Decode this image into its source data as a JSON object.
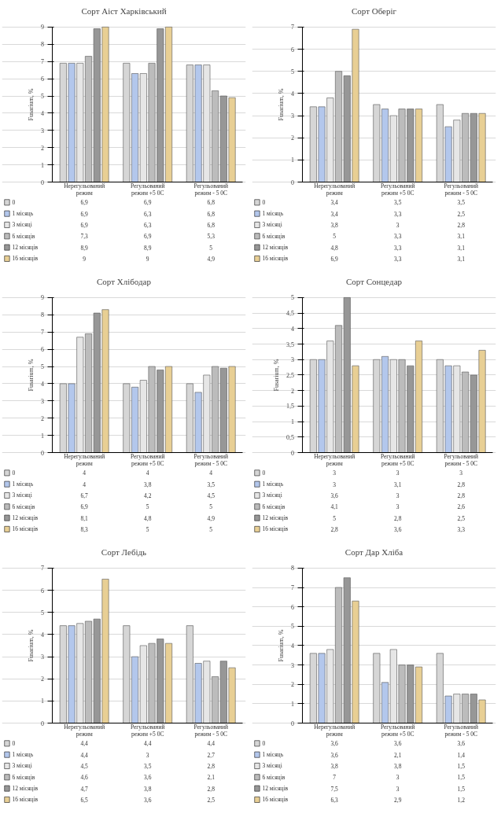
{
  "chart_data": [
    {
      "type": "bar",
      "title": "Сорт Аіст Харківський",
      "ylabel": "Fusarium, %",
      "categories": [
        "Нерегульований режим",
        "Регульований режим +5 0С",
        "Регульований режим - 5 0С"
      ],
      "ylim": [
        0,
        9
      ],
      "yticks": [
        0,
        1,
        2,
        3,
        4,
        5,
        6,
        7,
        8,
        9
      ],
      "grid": "y",
      "legend": "bottom",
      "tick_labels": "y",
      "series": [
        {
          "name": "0",
          "color": "#d6d6d6",
          "values": [
            6.9,
            6.9,
            6.8
          ],
          "value_labels": [
            "6,9",
            "6,9",
            "6,8"
          ]
        },
        {
          "name": "1 місяць",
          "color": "#b3c7ec",
          "values": [
            6.9,
            6.3,
            6.8
          ],
          "value_labels": [
            "6,9",
            "6,3",
            "6,8"
          ]
        },
        {
          "name": "3 місяці",
          "color": "#e6e6e6",
          "values": [
            6.9,
            6.3,
            6.8
          ],
          "value_labels": [
            "6,9",
            "6,3",
            "6,8"
          ]
        },
        {
          "name": "6 місяців",
          "color": "#bcbcbc",
          "values": [
            7.3,
            6.9,
            5.3
          ],
          "value_labels": [
            "7,3",
            "6,9",
            "5,3"
          ]
        },
        {
          "name": "12 місяців",
          "color": "#979797",
          "values": [
            8.9,
            8.9,
            5
          ],
          "value_labels": [
            "8,9",
            "8,9",
            "5"
          ]
        },
        {
          "name": "16 місяців",
          "color": "#e8cf94",
          "values": [
            9,
            9,
            4.9
          ],
          "value_labels": [
            "9",
            "9",
            "4,9"
          ]
        }
      ]
    },
    {
      "type": "bar",
      "title": "Сорт Оберіг",
      "ylabel": "Fusarium, %",
      "categories": [
        "Нерегульований режим",
        "Регульований режим +5 0С",
        "Регульований режим - 5 0С"
      ],
      "ylim": [
        0,
        7
      ],
      "yticks": [
        0,
        1,
        2,
        3,
        4,
        5,
        6,
        7
      ],
      "grid": "y",
      "legend": "bottom",
      "tick_labels": "y",
      "series": [
        {
          "name": "0",
          "color": "#d6d6d6",
          "values": [
            3.4,
            3.5,
            3.5
          ],
          "value_labels": [
            "3,4",
            "3,5",
            "3,5"
          ]
        },
        {
          "name": "1 місяць",
          "color": "#b3c7ec",
          "values": [
            3.4,
            3.3,
            2.5
          ],
          "value_labels": [
            "3,4",
            "3,3",
            "2,5"
          ]
        },
        {
          "name": "3 місяці",
          "color": "#e6e6e6",
          "values": [
            3.8,
            3,
            2.8
          ],
          "value_labels": [
            "3,8",
            "3",
            "2,8"
          ]
        },
        {
          "name": "6 місяців",
          "color": "#bcbcbc",
          "values": [
            5,
            3.3,
            3.1
          ],
          "value_labels": [
            "5",
            "3,3",
            "3,1"
          ]
        },
        {
          "name": "12 місяців",
          "color": "#979797",
          "values": [
            4.8,
            3.3,
            3.1
          ],
          "value_labels": [
            "4,8",
            "3,3",
            "3,1"
          ]
        },
        {
          "name": "16 місяців",
          "color": "#e8cf94",
          "values": [
            6.9,
            3.3,
            3.1
          ],
          "value_labels": [
            "6,9",
            "3,3",
            "3,1"
          ]
        }
      ]
    },
    {
      "type": "bar",
      "title": "Сорт Хлібодар",
      "ylabel": "Fusarium, %",
      "categories": [
        "Нерегульований режим",
        "Регульований режим +5 0С",
        "Регульований режим - 5 0С"
      ],
      "ylim": [
        0,
        9
      ],
      "yticks": [
        0,
        1,
        2,
        3,
        4,
        5,
        6,
        7,
        8,
        9
      ],
      "grid": "y",
      "legend": "bottom",
      "tick_labels": "y",
      "series": [
        {
          "name": "0",
          "color": "#d6d6d6",
          "values": [
            4,
            4,
            4
          ],
          "value_labels": [
            "4",
            "4",
            "4"
          ]
        },
        {
          "name": "1 місяць",
          "color": "#b3c7ec",
          "values": [
            4,
            3.8,
            3.5
          ],
          "value_labels": [
            "4",
            "3,8",
            "3,5"
          ]
        },
        {
          "name": "3 місяці",
          "color": "#e6e6e6",
          "values": [
            6.7,
            4.2,
            4.5
          ],
          "value_labels": [
            "6,7",
            "4,2",
            "4,5"
          ]
        },
        {
          "name": "6 місяців",
          "color": "#bcbcbc",
          "values": [
            6.9,
            5,
            5
          ],
          "value_labels": [
            "6,9",
            "5",
            "5"
          ]
        },
        {
          "name": "12 місяців",
          "color": "#979797",
          "values": [
            8.1,
            4.8,
            4.9
          ],
          "value_labels": [
            "8,1",
            "4,8",
            "4,9"
          ]
        },
        {
          "name": "16 місяців",
          "color": "#e8cf94",
          "values": [
            8.3,
            5,
            5
          ],
          "value_labels": [
            "8,3",
            "5",
            "5"
          ]
        }
      ]
    },
    {
      "type": "bar",
      "title": "Сорт Сонцедар",
      "ylabel": "Fusarium, %",
      "categories": [
        "Нерегульований режим",
        "Регульований режим +5 0С",
        "Регульований режим - 5 0С"
      ],
      "ylim": [
        0,
        5
      ],
      "yticks": [
        0,
        {
          "value": 0.5,
          "label": "0,5"
        },
        1,
        {
          "value": 1.5,
          "label": "1,5"
        },
        2,
        {
          "value": 2.5,
          "label": "2,5"
        },
        3,
        {
          "value": 3.5,
          "label": "3,5"
        },
        4,
        {
          "value": 4.5,
          "label": "4,5"
        },
        5
      ],
      "grid": "y",
      "legend": "bottom",
      "tick_labels": "y",
      "series": [
        {
          "name": "0",
          "color": "#d6d6d6",
          "values": [
            3,
            3,
            3
          ],
          "value_labels": [
            "3",
            "3",
            "3"
          ]
        },
        {
          "name": "1 місяць",
          "color": "#b3c7ec",
          "values": [
            3,
            3.1,
            2.8
          ],
          "value_labels": [
            "3",
            "3,1",
            "2,8"
          ]
        },
        {
          "name": "3 місяці",
          "color": "#e6e6e6",
          "values": [
            3.6,
            3,
            2.8
          ],
          "value_labels": [
            "3,6",
            "3",
            "2,8"
          ]
        },
        {
          "name": "6 місяців",
          "color": "#bcbcbc",
          "values": [
            4.1,
            3,
            2.6
          ],
          "value_labels": [
            "4,1",
            "3",
            "2,6"
          ]
        },
        {
          "name": "12 місяців",
          "color": "#979797",
          "values": [
            5,
            2.8,
            2.5
          ],
          "value_labels": [
            "5",
            "2,8",
            "2,5"
          ]
        },
        {
          "name": "16 місяців",
          "color": "#e8cf94",
          "values": [
            2.8,
            3.6,
            3.3
          ],
          "value_labels": [
            "2,8",
            "3,6",
            "3,3"
          ]
        }
      ]
    },
    {
      "type": "bar",
      "title": "Сорт Лебідь",
      "ylabel": "Fusarium, %",
      "categories": [
        "Нерегульований режим",
        "Регульований режим +5 0С",
        "Регульований режим - 5 0С"
      ],
      "ylim": [
        0,
        7
      ],
      "yticks": [
        0,
        1,
        2,
        3,
        4,
        5,
        6,
        7
      ],
      "grid": "y",
      "legend": "bottom",
      "tick_labels": "y",
      "series": [
        {
          "name": "0",
          "color": "#d6d6d6",
          "values": [
            4.4,
            4.4,
            4.4
          ],
          "value_labels": [
            "4,4",
            "4,4",
            "4,4"
          ]
        },
        {
          "name": "1 місяць",
          "color": "#b3c7ec",
          "values": [
            4.4,
            3,
            2.7
          ],
          "value_labels": [
            "4,4",
            "3",
            "2,7"
          ]
        },
        {
          "name": "3 місяці",
          "color": "#e6e6e6",
          "values": [
            4.5,
            3.5,
            2.8
          ],
          "value_labels": [
            "4,5",
            "3,5",
            "2,8"
          ]
        },
        {
          "name": "6 місяців",
          "color": "#bcbcbc",
          "values": [
            4.6,
            3.6,
            2.1
          ],
          "value_labels": [
            "4,6",
            "3,6",
            "2,1"
          ]
        },
        {
          "name": "12 місяців",
          "color": "#979797",
          "values": [
            4.7,
            3.8,
            2.8
          ],
          "value_labels": [
            "4,7",
            "3,8",
            "2,8"
          ]
        },
        {
          "name": "16 місяців",
          "color": "#e8cf94",
          "values": [
            6.5,
            3.6,
            2.5
          ],
          "value_labels": [
            "6,5",
            "3,6",
            "2,5"
          ]
        }
      ]
    },
    {
      "type": "bar",
      "title": "Сорт Дар Хліба",
      "ylabel": "Fusarium, %",
      "categories": [
        "Нерегульований режим",
        "Регульований режим +5 0С",
        "Регульований режим - 5 0С"
      ],
      "ylim": [
        0,
        8
      ],
      "yticks": [
        0,
        1,
        2,
        3,
        4,
        5,
        6,
        7,
        8
      ],
      "grid": "y",
      "legend": "bottom",
      "tick_labels": "y",
      "series": [
        {
          "name": "0",
          "color": "#d6d6d6",
          "values": [
            3.6,
            3.6,
            3.6
          ],
          "value_labels": [
            "3,6",
            "3,6",
            "3,6"
          ]
        },
        {
          "name": "1 місяць",
          "color": "#b3c7ec",
          "values": [
            3.6,
            2.1,
            1.4
          ],
          "value_labels": [
            "3,6",
            "2,1",
            "1,4"
          ]
        },
        {
          "name": "3 місяці",
          "color": "#e6e6e6",
          "values": [
            3.8,
            3.8,
            1.5
          ],
          "value_labels": [
            "3,8",
            "3,8",
            "1,5"
          ]
        },
        {
          "name": "6 місяців",
          "color": "#bcbcbc",
          "values": [
            7,
            3,
            1.5
          ],
          "value_labels": [
            "7",
            "3",
            "1,5"
          ]
        },
        {
          "name": "12 місяців",
          "color": "#979797",
          "values": [
            7.5,
            3,
            1.5
          ],
          "value_labels": [
            "7,5",
            "3",
            "1,5"
          ]
        },
        {
          "name": "16 місяців",
          "color": "#e8cf94",
          "values": [
            6.3,
            2.9,
            1.2
          ],
          "value_labels": [
            "6,3",
            "2,9",
            "1,2"
          ]
        }
      ]
    }
  ]
}
